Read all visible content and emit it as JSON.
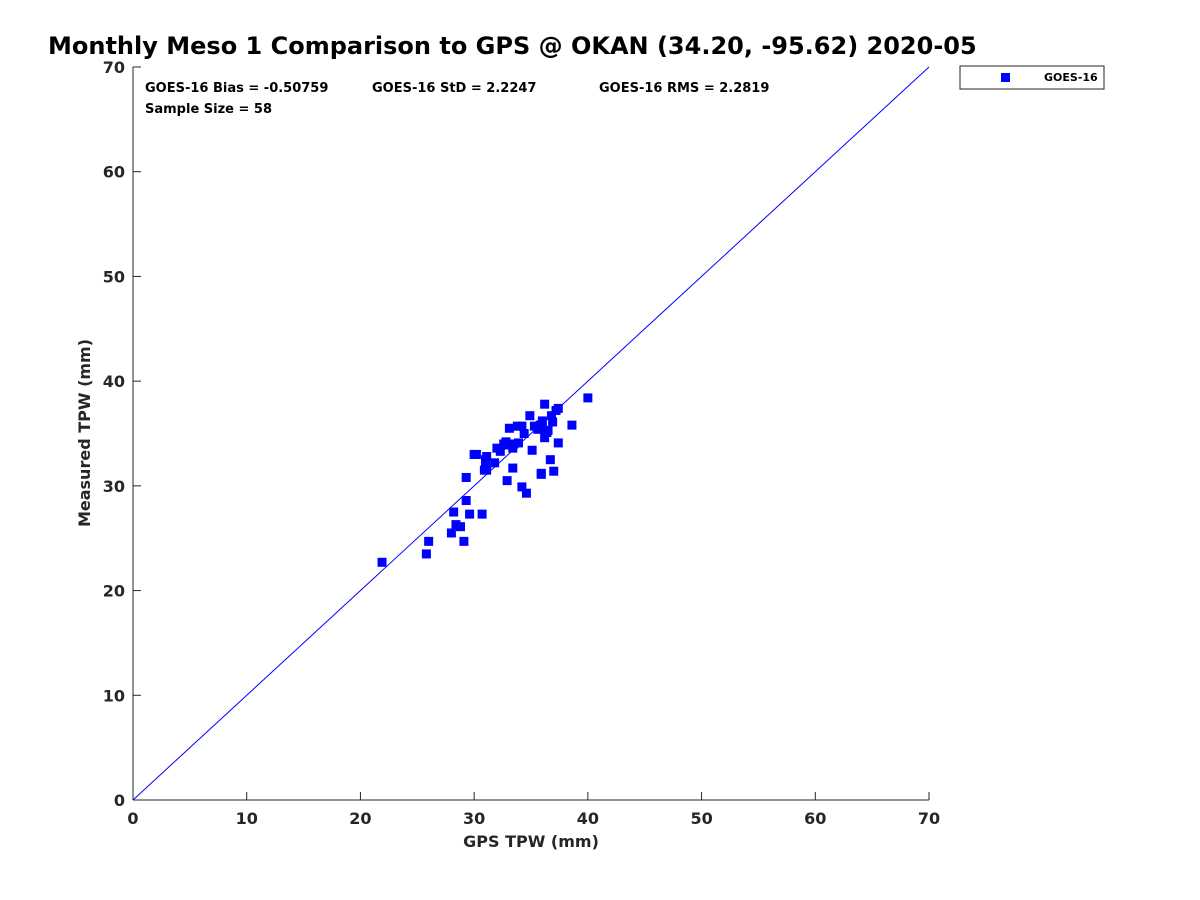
{
  "chart_data": {
    "type": "scatter",
    "title": "Monthly Meso 1 Comparison to GPS @ OKAN (34.20, -95.62) 2020-05",
    "xlabel": "GPS TPW (mm)",
    "ylabel": "Measured TPW (mm)",
    "xlim": [
      0,
      70
    ],
    "ylim": [
      0,
      70
    ],
    "xticks": [
      0,
      10,
      20,
      30,
      40,
      50,
      60,
      70
    ],
    "yticks": [
      0,
      10,
      20,
      30,
      40,
      50,
      60,
      70
    ],
    "grid": false,
    "legend_position": "top-right",
    "reference_line": {
      "from": [
        0,
        0
      ],
      "to": [
        70,
        70
      ],
      "color": "#0000ff"
    },
    "stats": {
      "bias": "GOES-16 Bias = -0.50759",
      "std": "GOES-16 StD = 2.2247",
      "rms": "GOES-16 RMS = 2.2819",
      "sample": "Sample Size = 58"
    },
    "series": [
      {
        "name": "GOES-16",
        "color": "#0000ff",
        "marker": "square",
        "points": [
          [
            21.9,
            22.7
          ],
          [
            25.8,
            23.5
          ],
          [
            26.0,
            24.7
          ],
          [
            28.0,
            25.5
          ],
          [
            28.2,
            27.5
          ],
          [
            28.4,
            26.3
          ],
          [
            28.8,
            26.1
          ],
          [
            29.1,
            24.7
          ],
          [
            29.3,
            28.6
          ],
          [
            29.6,
            27.3
          ],
          [
            30.7,
            27.3
          ],
          [
            29.3,
            30.8
          ],
          [
            30.0,
            33.0
          ],
          [
            30.2,
            33.0
          ],
          [
            30.9,
            31.5
          ],
          [
            31.1,
            31.5
          ],
          [
            31.0,
            32.3
          ],
          [
            31.1,
            32.8
          ],
          [
            31.8,
            32.2
          ],
          [
            32.0,
            33.6
          ],
          [
            32.3,
            33.3
          ],
          [
            32.6,
            34.0
          ],
          [
            32.8,
            34.2
          ],
          [
            32.9,
            30.5
          ],
          [
            33.1,
            35.5
          ],
          [
            33.4,
            31.7
          ],
          [
            33.4,
            33.6
          ],
          [
            33.5,
            34.0
          ],
          [
            33.8,
            35.7
          ],
          [
            34.2,
            29.9
          ],
          [
            34.2,
            35.7
          ],
          [
            34.4,
            35.0
          ],
          [
            34.6,
            29.3
          ],
          [
            34.9,
            36.7
          ],
          [
            35.1,
            33.4
          ],
          [
            35.3,
            35.7
          ],
          [
            35.6,
            35.4
          ],
          [
            35.8,
            35.8
          ],
          [
            35.9,
            31.2
          ],
          [
            35.9,
            31.1
          ],
          [
            36.0,
            36.2
          ],
          [
            36.2,
            37.8
          ],
          [
            36.2,
            34.6
          ],
          [
            36.4,
            35.1
          ],
          [
            36.5,
            35.3
          ],
          [
            36.7,
            32.5
          ],
          [
            36.8,
            36.7
          ],
          [
            36.9,
            36.1
          ],
          [
            37.0,
            31.4
          ],
          [
            37.2,
            37.2
          ],
          [
            37.4,
            34.1
          ],
          [
            37.4,
            37.4
          ],
          [
            38.6,
            35.8
          ],
          [
            40.0,
            38.4
          ],
          [
            33.9,
            34.1
          ],
          [
            32.8,
            33.9
          ],
          [
            31.0,
            32.5
          ],
          [
            36.0,
            35.5
          ]
        ]
      }
    ]
  }
}
